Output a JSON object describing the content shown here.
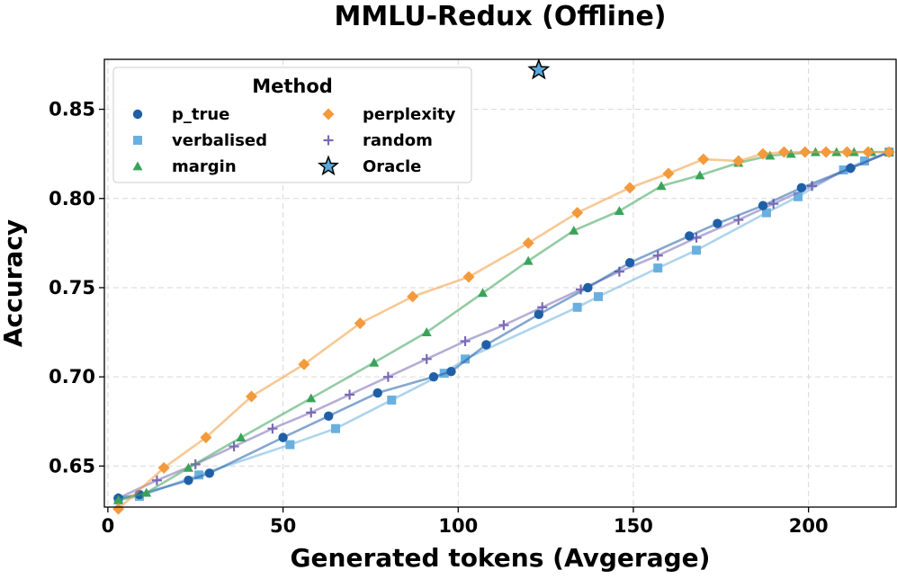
{
  "chart_data": {
    "type": "line",
    "title": "MMLU-Redux (Offline)",
    "xlabel": "Generated tokens (Avgerage)",
    "ylabel": "Accuracy",
    "xlim": [
      -1,
      225
    ],
    "ylim": [
      0.627,
      0.878
    ],
    "xticks": [
      0,
      50,
      100,
      150,
      200
    ],
    "yticks": [
      0.65,
      0.7,
      0.75,
      0.8,
      0.85
    ],
    "ytick_labels": [
      "0.65",
      "0.70",
      "0.75",
      "0.80",
      "0.85"
    ],
    "grid": true,
    "legend": {
      "title": "Method",
      "placement": "top-left",
      "entries": [
        "p_true",
        "verbalised",
        "margin",
        "perplexity",
        "random",
        "Oracle"
      ]
    },
    "series": [
      {
        "name": "p_true",
        "marker": "circle",
        "color": "#1f5fa8",
        "points": [
          [
            3,
            0.632
          ],
          [
            9,
            0.634
          ],
          [
            23,
            0.642
          ],
          [
            29,
            0.646
          ],
          [
            50,
            0.666
          ],
          [
            63,
            0.678
          ],
          [
            77,
            0.691
          ],
          [
            93,
            0.7
          ],
          [
            98,
            0.703
          ],
          [
            108,
            0.718
          ],
          [
            123,
            0.735
          ],
          [
            137,
            0.75
          ],
          [
            149,
            0.764
          ],
          [
            166,
            0.779
          ],
          [
            174,
            0.786
          ],
          [
            187,
            0.796
          ],
          [
            198,
            0.806
          ],
          [
            212,
            0.817
          ],
          [
            223,
            0.826
          ]
        ]
      },
      {
        "name": "verbalised",
        "marker": "square",
        "color": "#6ab0de",
        "points": [
          [
            3,
            0.631
          ],
          [
            9,
            0.633
          ],
          [
            26,
            0.645
          ],
          [
            52,
            0.662
          ],
          [
            65,
            0.671
          ],
          [
            81,
            0.687
          ],
          [
            96,
            0.702
          ],
          [
            102,
            0.71
          ],
          [
            134,
            0.739
          ],
          [
            140,
            0.745
          ],
          [
            157,
            0.761
          ],
          [
            168,
            0.771
          ],
          [
            188,
            0.792
          ],
          [
            197,
            0.801
          ],
          [
            210,
            0.816
          ],
          [
            216,
            0.821
          ],
          [
            223,
            0.826
          ]
        ]
      },
      {
        "name": "margin",
        "marker": "triangle",
        "color": "#3aa35a",
        "points": [
          [
            3,
            0.631
          ],
          [
            11,
            0.635
          ],
          [
            23,
            0.649
          ],
          [
            38,
            0.666
          ],
          [
            58,
            0.688
          ],
          [
            76,
            0.708
          ],
          [
            91,
            0.725
          ],
          [
            107,
            0.747
          ],
          [
            120,
            0.765
          ],
          [
            133,
            0.782
          ],
          [
            146,
            0.793
          ],
          [
            158,
            0.807
          ],
          [
            169,
            0.813
          ],
          [
            180,
            0.82
          ],
          [
            189,
            0.824
          ],
          [
            195,
            0.825
          ],
          [
            202,
            0.826
          ],
          [
            208,
            0.826
          ],
          [
            213,
            0.826
          ],
          [
            218,
            0.826
          ],
          [
            223,
            0.826
          ]
        ]
      },
      {
        "name": "perplexity",
        "marker": "diamond",
        "color": "#f39a3c",
        "points": [
          [
            3,
            0.626
          ],
          [
            16,
            0.649
          ],
          [
            28,
            0.666
          ],
          [
            41,
            0.689
          ],
          [
            56,
            0.707
          ],
          [
            72,
            0.73
          ],
          [
            87,
            0.745
          ],
          [
            103,
            0.756
          ],
          [
            120,
            0.775
          ],
          [
            134,
            0.792
          ],
          [
            149,
            0.806
          ],
          [
            160,
            0.814
          ],
          [
            170,
            0.822
          ],
          [
            180,
            0.821
          ],
          [
            187,
            0.825
          ],
          [
            193,
            0.826
          ],
          [
            199,
            0.826
          ],
          [
            205,
            0.826
          ],
          [
            211,
            0.826
          ],
          [
            217,
            0.826
          ],
          [
            223,
            0.826
          ]
        ]
      },
      {
        "name": "random",
        "marker": "plus",
        "color": "#7a6ab5",
        "points": [
          [
            3,
            0.632
          ],
          [
            14,
            0.642
          ],
          [
            25,
            0.651
          ],
          [
            36,
            0.661
          ],
          [
            47,
            0.671
          ],
          [
            58,
            0.68
          ],
          [
            69,
            0.69
          ],
          [
            80,
            0.7
          ],
          [
            91,
            0.71
          ],
          [
            102,
            0.72
          ],
          [
            113,
            0.729
          ],
          [
            124,
            0.739
          ],
          [
            135,
            0.749
          ],
          [
            146,
            0.759
          ],
          [
            157,
            0.768
          ],
          [
            168,
            0.778
          ],
          [
            180,
            0.788
          ],
          [
            190,
            0.797
          ],
          [
            201,
            0.807
          ],
          [
            212,
            0.817
          ],
          [
            223,
            0.826
          ]
        ]
      }
    ],
    "oracle": {
      "name": "Oracle",
      "marker": "star",
      "color": "#5aa9d8",
      "x": 123,
      "y": 0.872
    }
  }
}
